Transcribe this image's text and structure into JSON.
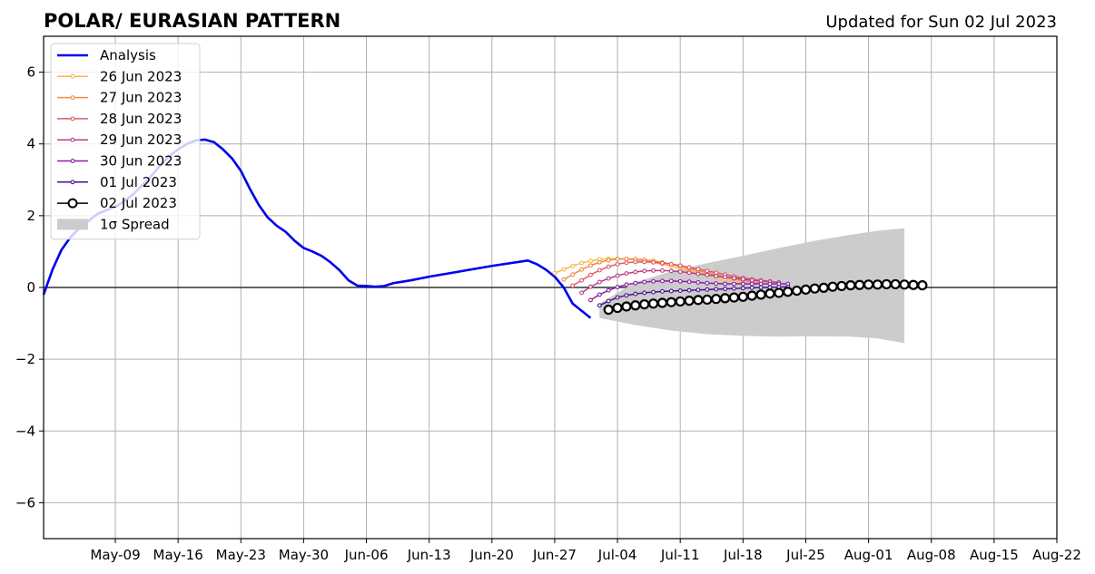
{
  "title_left": "POLAR/ EURASIAN  PATTERN",
  "title_right": "Updated for Sun 02 Jul 2023",
  "chart_data": {
    "type": "line",
    "ylim": [
      -7,
      7
    ],
    "y_ticks": [
      6,
      4,
      2,
      0,
      -2,
      -4,
      -6
    ],
    "y_tick_labels": [
      "6",
      "4",
      "2",
      "0",
      "−2",
      "−4",
      "−6"
    ],
    "xlim": [
      "2023-05-01",
      "2023-08-22"
    ],
    "x_ticks": [
      "2023-05-09",
      "2023-05-16",
      "2023-05-23",
      "2023-05-30",
      "2023-06-06",
      "2023-06-13",
      "2023-06-20",
      "2023-06-27",
      "2023-07-04",
      "2023-07-11",
      "2023-07-18",
      "2023-07-25",
      "2023-08-01",
      "2023-08-08",
      "2023-08-15",
      "2023-08-22"
    ],
    "x_tick_labels": [
      "May-09",
      "May-16",
      "May-23",
      "May-30",
      "Jun-06",
      "Jun-13",
      "Jun-20",
      "Jun-27",
      "Jul-04",
      "Jul-11",
      "Jul-18",
      "Jul-25",
      "Aug-01",
      "Aug-08",
      "Aug-15",
      "Aug-22"
    ],
    "grid": true,
    "legend_position": "upper-left",
    "analysis": {
      "name": "Analysis",
      "color": "#0000ee",
      "x": [
        "2023-05-01",
        "2023-05-02",
        "2023-05-03",
        "2023-05-04",
        "2023-05-05",
        "2023-05-06",
        "2023-05-07",
        "2023-05-08",
        "2023-05-09",
        "2023-05-10",
        "2023-05-11",
        "2023-05-12",
        "2023-05-13",
        "2023-05-14",
        "2023-05-15",
        "2023-05-16",
        "2023-05-17",
        "2023-05-18",
        "2023-05-19",
        "2023-05-20",
        "2023-05-21",
        "2023-05-22",
        "2023-05-23",
        "2023-05-24",
        "2023-05-25",
        "2023-05-26",
        "2023-05-27",
        "2023-05-28",
        "2023-05-29",
        "2023-05-30",
        "2023-05-31",
        "2023-06-01",
        "2023-06-02",
        "2023-06-03",
        "2023-06-04",
        "2023-06-05",
        "2023-06-06",
        "2023-06-07",
        "2023-06-08",
        "2023-06-09",
        "2023-06-10",
        "2023-06-11",
        "2023-06-13",
        "2023-06-20",
        "2023-06-24",
        "2023-06-25",
        "2023-06-26",
        "2023-06-27",
        "2023-06-28",
        "2023-06-29",
        "2023-06-30",
        "2023-07-01",
        "2023-07-02"
      ],
      "y": [
        -0.2,
        0.5,
        1.05,
        1.4,
        1.65,
        1.85,
        2.05,
        2.15,
        2.25,
        2.4,
        2.6,
        2.85,
        3.1,
        3.4,
        3.65,
        3.85,
        4.0,
        4.1,
        4.12,
        4.05,
        3.85,
        3.6,
        3.25,
        2.75,
        2.3,
        1.95,
        1.72,
        1.55,
        1.3,
        1.1,
        1.0,
        0.88,
        0.7,
        0.48,
        0.2,
        0.05,
        0.04,
        0.02,
        0.04,
        0.12,
        0.16,
        0.2,
        0.3,
        0.6,
        0.75,
        0.65,
        0.5,
        0.3,
        0.0,
        -0.45,
        -0.65,
        -0.85,
        null
      ]
    },
    "spread": {
      "name": "1σ Spread",
      "color": "#cccccc",
      "x": [
        "2023-07-02",
        "2023-07-06",
        "2023-07-10",
        "2023-07-14",
        "2023-07-18",
        "2023-07-22",
        "2023-07-26",
        "2023-07-30",
        "2023-08-02",
        "2023-08-05"
      ],
      "upper": [
        -0.45,
        0.15,
        0.45,
        0.68,
        0.88,
        1.1,
        1.3,
        1.47,
        1.58,
        1.65
      ],
      "lower": [
        -0.85,
        -1.05,
        -1.2,
        -1.3,
        -1.35,
        -1.37,
        -1.36,
        -1.37,
        -1.42,
        -1.55
      ]
    },
    "forecasts": [
      {
        "name": "26 Jun 2023",
        "color": "#fbb846",
        "start": "2023-06-27",
        "marker": "small",
        "y": [
          0.4,
          0.5,
          0.6,
          0.68,
          0.74,
          0.78,
          0.8,
          0.8,
          0.79,
          0.77,
          0.74,
          0.7,
          0.65,
          0.59,
          0.53,
          0.47,
          0.41,
          0.35,
          0.29,
          0.23,
          0.17,
          0.12
        ]
      },
      {
        "name": "27 Jun 2023",
        "color": "#f28b43",
        "start": "2023-06-28",
        "marker": "small",
        "y": [
          0.22,
          0.36,
          0.5,
          0.61,
          0.7,
          0.76,
          0.79,
          0.8,
          0.79,
          0.77,
          0.74,
          0.7,
          0.65,
          0.59,
          0.53,
          0.47,
          0.41,
          0.35,
          0.29,
          0.24,
          0.19,
          0.15,
          0.12
        ]
      },
      {
        "name": "28 Jun 2023",
        "color": "#dd5a6a",
        "start": "2023-06-29",
        "marker": "small",
        "y": [
          0.05,
          0.2,
          0.35,
          0.48,
          0.58,
          0.65,
          0.69,
          0.71,
          0.71,
          0.7,
          0.68,
          0.65,
          0.61,
          0.56,
          0.51,
          0.46,
          0.41,
          0.36,
          0.31,
          0.27,
          0.23,
          0.2,
          0.17
        ]
      },
      {
        "name": "29 Jun 2023",
        "color": "#b83e87",
        "start": "2023-06-30",
        "marker": "small",
        "y": [
          -0.15,
          0.02,
          0.15,
          0.25,
          0.33,
          0.39,
          0.43,
          0.46,
          0.47,
          0.47,
          0.46,
          0.44,
          0.41,
          0.38,
          0.35,
          0.32,
          0.29,
          0.26,
          0.23,
          0.2,
          0.18,
          0.16,
          0.14
        ]
      },
      {
        "name": "30 Jun 2023",
        "color": "#8a1fa3",
        "start": "2023-07-01",
        "marker": "small",
        "y": [
          -0.35,
          -0.2,
          -0.08,
          0.01,
          0.08,
          0.12,
          0.15,
          0.17,
          0.18,
          0.18,
          0.17,
          0.16,
          0.14,
          0.12,
          0.11,
          0.1,
          0.1,
          0.1,
          0.1,
          0.1,
          0.1,
          0.1,
          0.1
        ]
      },
      {
        "name": "01 Jul 2023",
        "color": "#4a1090",
        "start": "2023-07-02",
        "marker": "small",
        "y": [
          -0.5,
          -0.38,
          -0.28,
          -0.22,
          -0.18,
          -0.15,
          -0.13,
          -0.11,
          -0.1,
          -0.09,
          -0.08,
          -0.07,
          -0.06,
          -0.05,
          -0.04,
          -0.03,
          -0.02,
          -0.01,
          0.0,
          0.0,
          0.01,
          0.02
        ]
      },
      {
        "name": "02 Jul 2023",
        "color": "#000000",
        "start": "2023-07-03",
        "marker": "large",
        "y": [
          -0.62,
          -0.57,
          -0.53,
          -0.5,
          -0.47,
          -0.45,
          -0.43,
          -0.41,
          -0.39,
          -0.37,
          -0.35,
          -0.34,
          -0.32,
          -0.3,
          -0.28,
          -0.26,
          -0.23,
          -0.2,
          -0.17,
          -0.15,
          -0.12,
          -0.09,
          -0.06,
          -0.03,
          -0.01,
          0.02,
          0.04,
          0.06,
          0.07,
          0.08,
          0.08,
          0.09,
          0.09,
          0.08,
          0.07,
          0.06
        ]
      }
    ]
  }
}
